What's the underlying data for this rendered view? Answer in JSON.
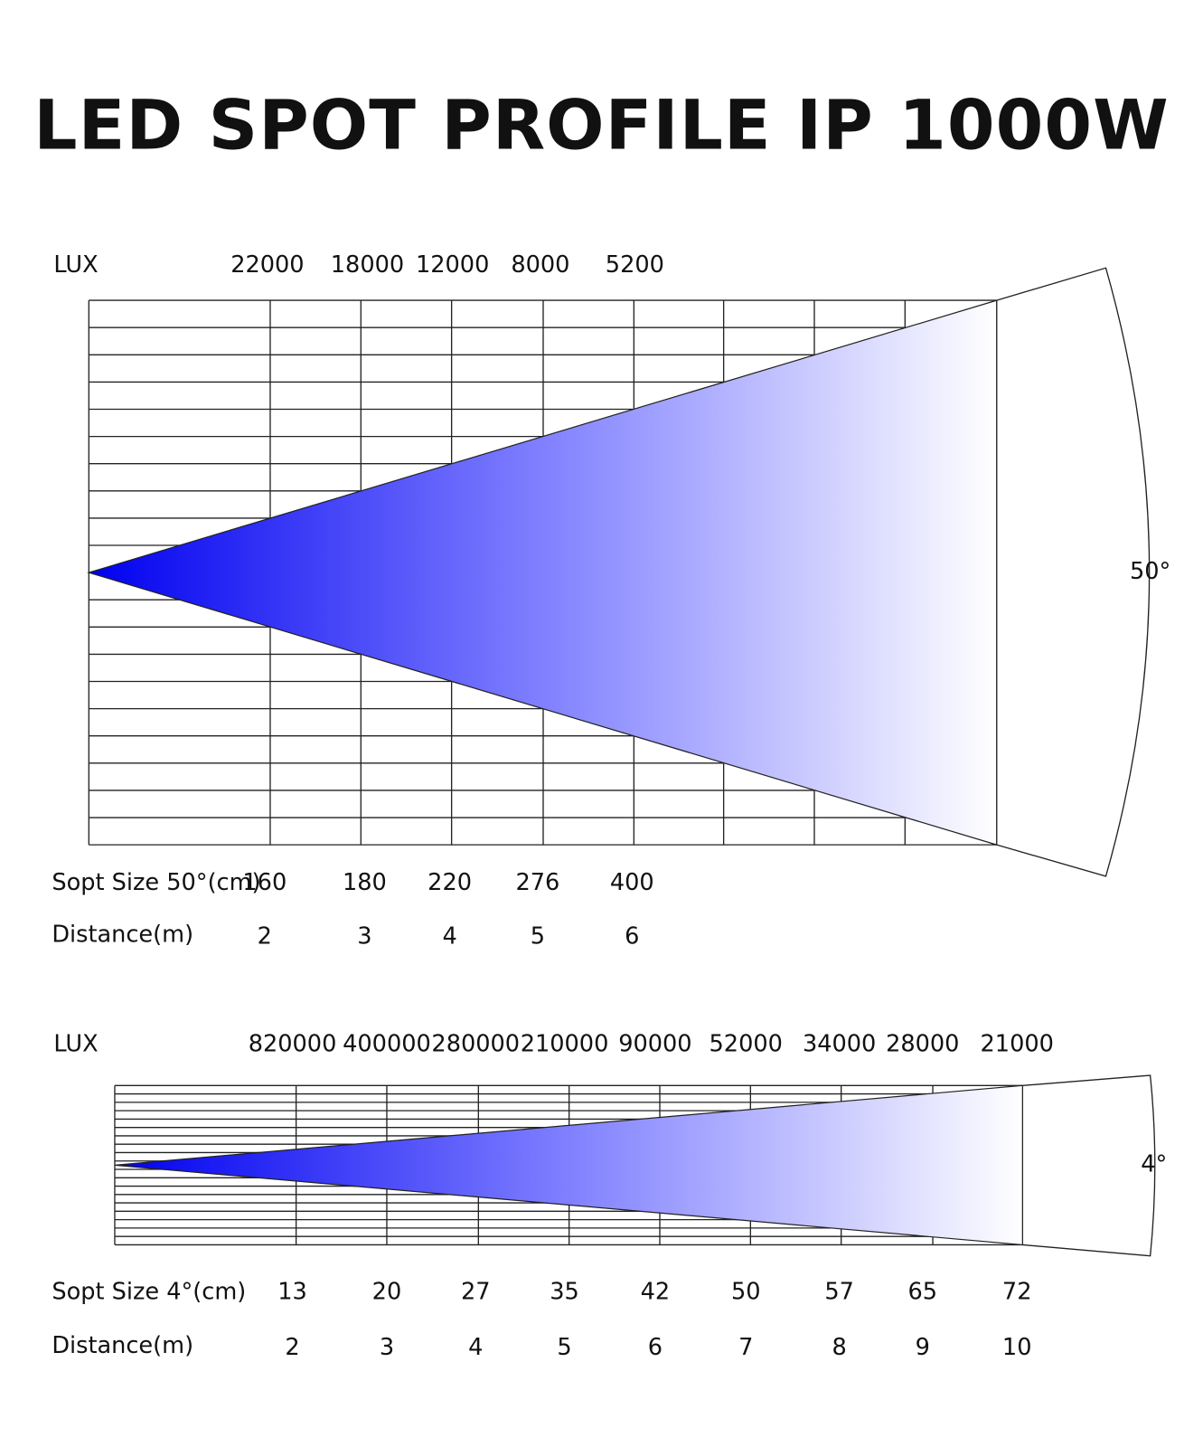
{
  "title": "LED SPOT PROFILE IP 1000W",
  "diagrams": [
    {
      "lux_label": "LUX",
      "lux": [
        22000,
        18000,
        12000,
        8000,
        5200
      ],
      "spot_label": "Sopt Size 50°(cm)",
      "spot": [
        160,
        180,
        220,
        276,
        400
      ],
      "distance_label": "Distance(m)",
      "distance": [
        2,
        3,
        4,
        5,
        6
      ],
      "angle": "50°"
    },
    {
      "lux_label": "LUX",
      "lux": [
        820000,
        400000,
        280000,
        210000,
        90000,
        52000,
        34000,
        28000,
        21000
      ],
      "spot_label": "Sopt Size 4°(cm)",
      "spot": [
        13,
        20,
        27,
        35,
        42,
        50,
        57,
        65,
        72
      ],
      "distance_label": "Distance(m)",
      "distance": [
        2,
        3,
        4,
        5,
        6,
        7,
        8,
        9,
        10
      ],
      "angle": "4°"
    }
  ]
}
